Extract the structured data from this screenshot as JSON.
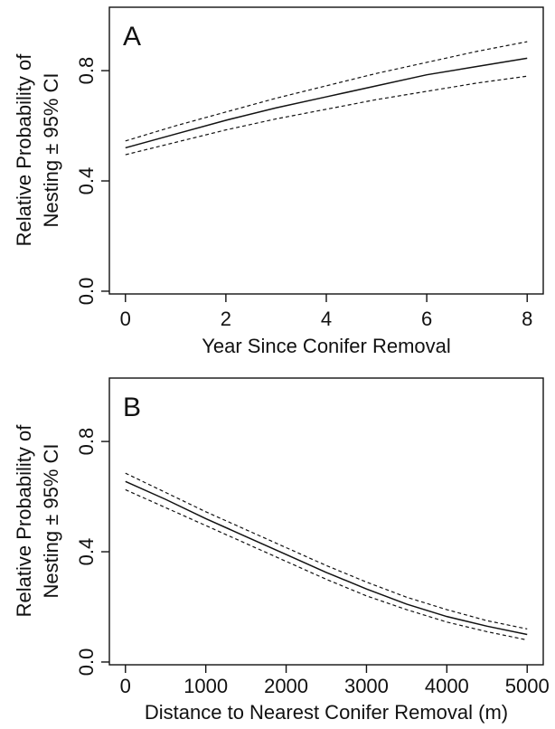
{
  "chart_data": [
    {
      "type": "line",
      "panel_label": "A",
      "xlabel": "Year Since Conifer Removal",
      "ylabel": [
        "Relative Probability of",
        "Nesting ± 95% CI"
      ],
      "x_ticks": [
        0,
        2,
        4,
        6,
        8
      ],
      "y_ticks": [
        0.0,
        0.4,
        0.8
      ],
      "y_tick_labels": [
        "0.0",
        "0.4",
        "0.8"
      ],
      "xlim": [
        -0.32,
        8.32
      ],
      "ylim": [
        -0.01,
        1.03
      ],
      "grid": false,
      "series": [
        {
          "style": "solid",
          "x": [
            0,
            1,
            2,
            3,
            4,
            5,
            6,
            7,
            8
          ],
          "values": [
            0.52,
            0.57,
            0.62,
            0.665,
            0.705,
            0.745,
            0.785,
            0.815,
            0.845
          ]
        },
        {
          "style": "dashed",
          "x": [
            0,
            1,
            2,
            3,
            4,
            5,
            6,
            7,
            8
          ],
          "values": [
            0.545,
            0.6,
            0.65,
            0.7,
            0.745,
            0.79,
            0.83,
            0.87,
            0.905
          ]
        },
        {
          "style": "dashed",
          "x": [
            0,
            1,
            2,
            3,
            4,
            5,
            6,
            7,
            8
          ],
          "values": [
            0.495,
            0.54,
            0.585,
            0.625,
            0.66,
            0.695,
            0.725,
            0.755,
            0.78
          ]
        }
      ]
    },
    {
      "type": "line",
      "panel_label": "B",
      "xlabel": "Distance to Nearest Conifer Removal (m)",
      "ylabel": [
        "Relative Probability of",
        "Nesting ± 95% CI"
      ],
      "x_ticks": [
        0,
        1000,
        2000,
        3000,
        4000,
        5000
      ],
      "y_ticks": [
        0.0,
        0.4,
        0.8
      ],
      "y_tick_labels": [
        "0.0",
        "0.4",
        "0.8"
      ],
      "xlim": [
        -200,
        5200
      ],
      "ylim": [
        -0.01,
        1.03
      ],
      "grid": false,
      "series": [
        {
          "style": "solid",
          "x": [
            0,
            500,
            1000,
            1500,
            2000,
            2500,
            3000,
            3500,
            4000,
            4500,
            5000
          ],
          "values": [
            0.655,
            0.59,
            0.52,
            0.455,
            0.39,
            0.325,
            0.265,
            0.21,
            0.165,
            0.13,
            0.1
          ]
        },
        {
          "style": "dashed",
          "x": [
            0,
            500,
            1000,
            1500,
            2000,
            2500,
            3000,
            3500,
            4000,
            4500,
            5000
          ],
          "values": [
            0.685,
            0.615,
            0.545,
            0.48,
            0.415,
            0.35,
            0.29,
            0.235,
            0.19,
            0.15,
            0.12
          ]
        },
        {
          "style": "dashed",
          "x": [
            0,
            500,
            1000,
            1500,
            2000,
            2500,
            3000,
            3500,
            4000,
            4500,
            5000
          ],
          "values": [
            0.625,
            0.56,
            0.495,
            0.43,
            0.365,
            0.3,
            0.24,
            0.19,
            0.145,
            0.11,
            0.08
          ]
        }
      ]
    }
  ]
}
